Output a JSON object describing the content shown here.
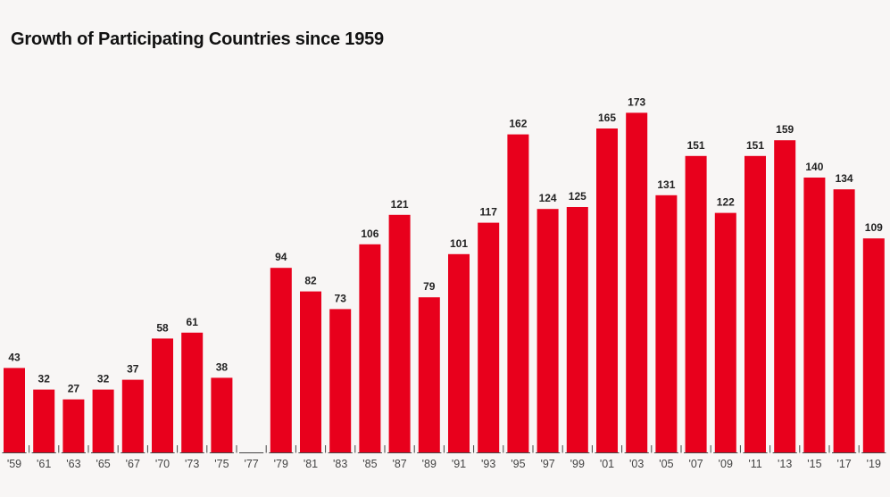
{
  "chart_data": {
    "type": "bar",
    "title": "Growth of Participating Countries since 1959",
    "xlabel": "",
    "ylabel": "",
    "ylim": [
      0,
      200
    ],
    "grid": false,
    "bar_color": "#e8001c",
    "categories": [
      "'59",
      "'61",
      "'63",
      "'65",
      "'67",
      "'70",
      "'73",
      "'75",
      "'77",
      "'79",
      "'81",
      "'83",
      "'85",
      "'87",
      "'89",
      "'91",
      "'93",
      "'95",
      "'97",
      "'99",
      "'01",
      "'03",
      "'05",
      "'07",
      "'09",
      "'11",
      "'13",
      "'15",
      "'17",
      "'19"
    ],
    "values": [
      43,
      32,
      27,
      32,
      37,
      58,
      61,
      38,
      0,
      94,
      82,
      73,
      106,
      121,
      79,
      101,
      117,
      162,
      124,
      125,
      165,
      173,
      131,
      151,
      122,
      151,
      159,
      140,
      134,
      109
    ],
    "value_labels": [
      "43",
      "32",
      "27",
      "32",
      "37",
      "58",
      "61",
      "38",
      "",
      "94",
      "82",
      "73",
      "106",
      "121",
      "79",
      "101",
      "117",
      "162",
      "124",
      "125",
      "165",
      "173",
      "131",
      "151",
      "122",
      "151",
      "159",
      "140",
      "134",
      "109"
    ]
  }
}
